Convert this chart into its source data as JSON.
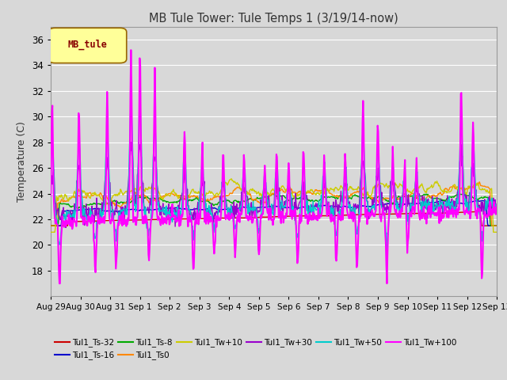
{
  "title": "MB Tule Tower: Tule Temps 1 (3/19/14-now)",
  "ylabel": "Temperature (C)",
  "ylim": [
    16,
    37
  ],
  "yticks": [
    18,
    20,
    22,
    24,
    26,
    28,
    30,
    32,
    34,
    36
  ],
  "xlabel_dates": [
    "Aug 29",
    "Aug 30",
    "Aug 31",
    "Sep 1",
    "Sep 2",
    "Sep 3",
    "Sep 4",
    "Sep 5",
    "Sep 6",
    "Sep 7",
    "Sep 8",
    "Sep 9",
    "Sep 10",
    "Sep 11",
    "Sep 12",
    "Sep 13"
  ],
  "background_color": "#d8d8d8",
  "plot_bg_color": "#d8d8d8",
  "grid_color": "#ffffff",
  "legend_box_text": "MB_tule",
  "series_order": [
    "Tul1_Ts-32",
    "Tul1_Ts-16",
    "Tul1_Ts-8",
    "Tul1_Ts0",
    "Tul1_Tw+10",
    "Tul1_Tw+30",
    "Tul1_Tw+50",
    "Tul1_Tw+100"
  ],
  "series_colors": {
    "Tul1_Ts-32": "#cc0000",
    "Tul1_Ts-16": "#0000cc",
    "Tul1_Ts-8": "#00aa00",
    "Tul1_Ts0": "#ff8800",
    "Tul1_Tw+10": "#cccc00",
    "Tul1_Tw+30": "#9900cc",
    "Tul1_Tw+50": "#00cccc",
    "Tul1_Tw+100": "#ff00ff"
  },
  "legend_rows": [
    [
      "Tul1_Ts-32",
      "Tul1_Ts-16",
      "Tul1_Ts-8",
      "Tul1_Ts0",
      "Tul1_Tw+10",
      "Tul1_Tw+30"
    ],
    [
      "Tul1_Tw+50",
      "Tul1_Tw+100"
    ]
  ]
}
